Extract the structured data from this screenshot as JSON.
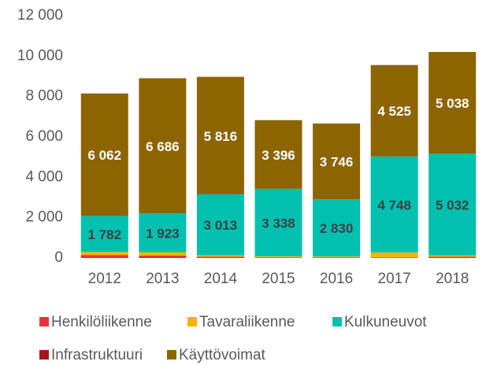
{
  "chart_data": {
    "type": "bar",
    "stacked": true,
    "categories": [
      "2012",
      "2013",
      "2014",
      "2015",
      "2016",
      "2017",
      "2018"
    ],
    "series": [
      {
        "name": "Henkilöliikenne",
        "color": "#e8333c",
        "values": [
          150,
          120,
          60,
          30,
          30,
          30,
          60
        ]
      },
      {
        "name": "Tavaraliikenne",
        "color": "#f5b400",
        "values": [
          150,
          170,
          80,
          60,
          50,
          250,
          70
        ]
      },
      {
        "name": "Kulkuneuvot",
        "color": "#00c0b0",
        "label_color": "#404040",
        "values": [
          1782,
          1923,
          3013,
          3338,
          2830,
          4748,
          5032
        ],
        "value_labels": [
          "1 782",
          "1 923",
          "3 013",
          "3 338",
          "2 830",
          "4 748",
          "5 032"
        ]
      },
      {
        "name": "Infrastruktuuri",
        "color": "#a01818",
        "values": [
          5,
          5,
          5,
          5,
          5,
          5,
          5
        ]
      },
      {
        "name": "Käyttövoimat",
        "color": "#8c6400",
        "label_color": "#ffffff",
        "values": [
          6062,
          6686,
          5816,
          3396,
          3746,
          4525,
          5038
        ],
        "value_labels": [
          "6 062",
          "6 686",
          "5 816",
          "3 396",
          "3 746",
          "4 525",
          "5 038"
        ]
      }
    ],
    "ylim": [
      0,
      12000
    ],
    "yticks": [
      0,
      {
        "value": 2000,
        "label": "2 000"
      },
      {
        "value": 4000,
        "label": "4 000"
      },
      {
        "value": 6000,
        "label": "6 000"
      },
      {
        "value": 8000,
        "label": "8 000"
      },
      {
        "value": 10000,
        "label": "10 000"
      },
      {
        "value": 12000,
        "label": "12 000"
      }
    ],
    "grid": false
  }
}
